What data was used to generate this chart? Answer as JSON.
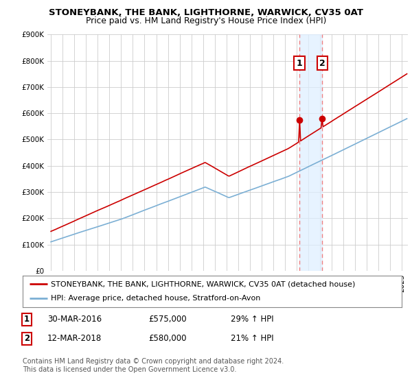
{
  "title": "STONEYBANK, THE BANK, LIGHTHORNE, WARWICK, CV35 0AT",
  "subtitle": "Price paid vs. HM Land Registry's House Price Index (HPI)",
  "ylim": [
    0,
    900000
  ],
  "yticks": [
    0,
    100000,
    200000,
    300000,
    400000,
    500000,
    600000,
    700000,
    800000,
    900000
  ],
  "ytick_labels": [
    "£0",
    "£100K",
    "£200K",
    "£300K",
    "£400K",
    "£500K",
    "£600K",
    "£700K",
    "£800K",
    "£900K"
  ],
  "hpi_color": "#7bafd4",
  "price_color": "#cc0000",
  "vline_color": "#f08080",
  "shade_color": "#ddeeff",
  "purchase1_year": 2016.25,
  "purchase1_price": 575000,
  "purchase1_label": "1",
  "purchase2_year": 2018.19,
  "purchase2_price": 580000,
  "purchase2_label": "2",
  "legend_label1": "STONEYBANK, THE BANK, LIGHTHORNE, WARWICK, CV35 0AT (detached house)",
  "legend_label2": "HPI: Average price, detached house, Stratford-on-Avon",
  "table_row1": [
    "1",
    "30-MAR-2016",
    "£575,000",
    "29% ↑ HPI"
  ],
  "table_row2": [
    "2",
    "12-MAR-2018",
    "£580,000",
    "21% ↑ HPI"
  ],
  "footnote": "Contains HM Land Registry data © Crown copyright and database right 2024.\nThis data is licensed under the Open Government Licence v3.0.",
  "bg_color": "#ffffff",
  "grid_color": "#cccccc",
  "title_fontsize": 9.5,
  "subtitle_fontsize": 8.8,
  "tick_fontsize": 7.5,
  "legend_fontsize": 8.0,
  "table_fontsize": 8.5
}
